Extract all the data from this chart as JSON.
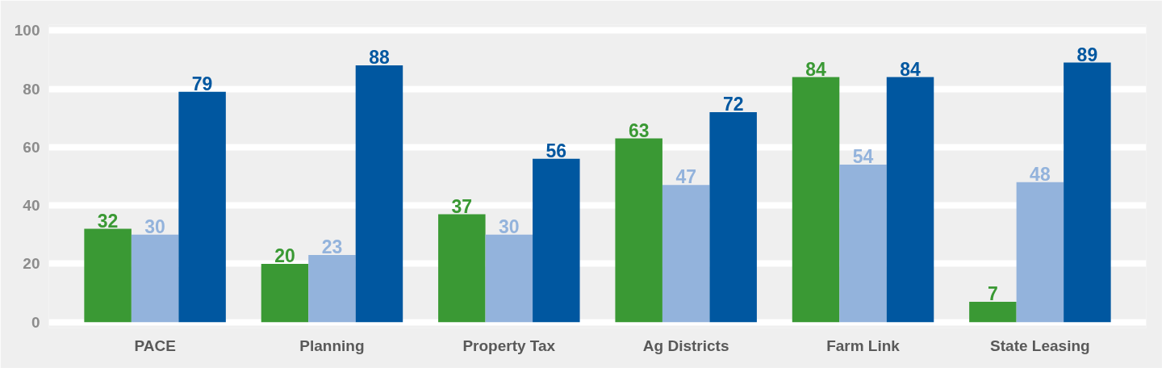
{
  "chart_data": {
    "type": "bar",
    "categories": [
      "PACE",
      "Planning",
      "Property Tax",
      "Ag Districts",
      "Farm Link",
      "State Leasing"
    ],
    "series": [
      {
        "color": "#3a9934",
        "values": [
          32,
          20,
          37,
          63,
          84,
          7
        ]
      },
      {
        "color": "#93b3dc",
        "values": [
          30,
          23,
          30,
          47,
          54,
          48
        ]
      },
      {
        "color": "#0057a0",
        "values": [
          79,
          88,
          56,
          72,
          84,
          89
        ]
      }
    ],
    "ylim": [
      -2,
      102
    ],
    "yticks": [
      0,
      20,
      40,
      60,
      80,
      100
    ],
    "grid": "y",
    "data_labels": true
  }
}
